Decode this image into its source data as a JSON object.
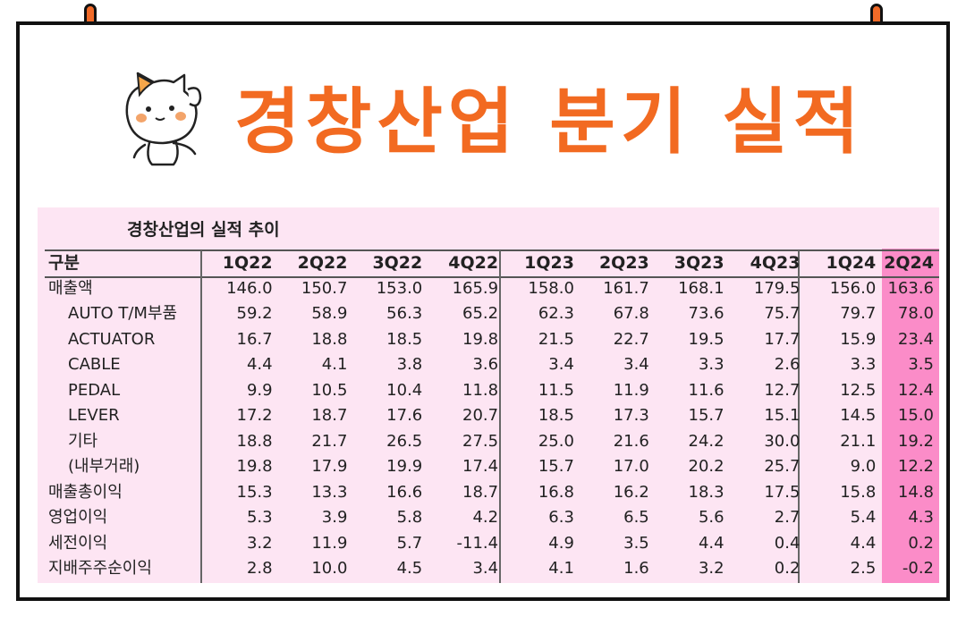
{
  "title": "경창산업 분기 실적",
  "table": {
    "subtitle": "경창산업의 실적 추이",
    "headers": [
      "구분",
      "1Q22",
      "2Q22",
      "3Q22",
      "4Q22",
      "1Q23",
      "2Q23",
      "3Q23",
      "4Q23",
      "1Q24",
      "2Q24"
    ],
    "highlight_color": "#fb8cc8",
    "background_color": "#fde5f3",
    "rows": [
      {
        "label": "매출액",
        "values": [
          "146.0",
          "150.7",
          "153.0",
          "165.9",
          "158.0",
          "161.7",
          "168.1",
          "179.5",
          "156.0",
          "163.6"
        ]
      },
      {
        "label": "AUTO T/M부품",
        "values": [
          "59.2",
          "58.9",
          "56.3",
          "65.2",
          "62.3",
          "67.8",
          "73.6",
          "75.7",
          "79.7",
          "78.0"
        ]
      },
      {
        "label": "ACTUATOR",
        "values": [
          "16.7",
          "18.8",
          "18.5",
          "19.8",
          "21.5",
          "22.7",
          "19.5",
          "17.7",
          "15.9",
          "23.4"
        ]
      },
      {
        "label": "CABLE",
        "values": [
          "4.4",
          "4.1",
          "3.8",
          "3.6",
          "3.4",
          "3.4",
          "3.3",
          "2.6",
          "3.3",
          "3.5"
        ]
      },
      {
        "label": "PEDAL",
        "values": [
          "9.9",
          "10.5",
          "10.4",
          "11.8",
          "11.5",
          "11.9",
          "11.6",
          "12.7",
          "12.5",
          "12.4"
        ]
      },
      {
        "label": "LEVER",
        "values": [
          "17.2",
          "18.7",
          "17.6",
          "20.7",
          "18.5",
          "17.3",
          "15.7",
          "15.1",
          "14.5",
          "15.0"
        ]
      },
      {
        "label": "기타",
        "values": [
          "18.8",
          "21.7",
          "26.5",
          "27.5",
          "25.0",
          "21.6",
          "24.2",
          "30.0",
          "21.1",
          "19.2"
        ]
      },
      {
        "label": "(내부거래)",
        "values": [
          "19.8",
          "17.9",
          "19.9",
          "17.4",
          "15.7",
          "17.0",
          "20.2",
          "25.7",
          "9.0",
          "12.2"
        ]
      },
      {
        "label": "매출총이익",
        "values": [
          "15.3",
          "13.3",
          "16.6",
          "18.7",
          "16.8",
          "16.2",
          "18.3",
          "17.5",
          "15.8",
          "14.8"
        ]
      },
      {
        "label": "영업이익",
        "values": [
          "5.3",
          "3.9",
          "5.8",
          "4.2",
          "6.3",
          "6.5",
          "5.6",
          "2.7",
          "5.4",
          "4.3"
        ]
      },
      {
        "label": "세전이익",
        "values": [
          "3.2",
          "11.9",
          "5.7",
          "-11.4",
          "4.9",
          "3.5",
          "4.4",
          "0.4",
          "4.4",
          "0.2"
        ]
      },
      {
        "label": "지배주주순이익",
        "values": [
          "2.8",
          "10.0",
          "4.5",
          "3.4",
          "4.1",
          "1.6",
          "3.2",
          "0.2",
          "2.5",
          "-0.2"
        ]
      }
    ]
  }
}
